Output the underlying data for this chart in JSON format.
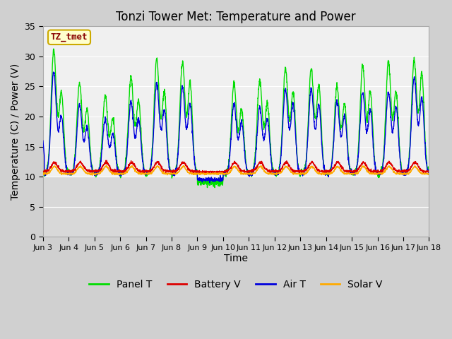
{
  "title": "Tonzi Tower Met: Temperature and Power",
  "xlabel": "Time",
  "ylabel": "Temperature (C) / Power (V)",
  "ylim": [
    0,
    35
  ],
  "yticks": [
    0,
    5,
    10,
    15,
    20,
    25,
    30,
    35
  ],
  "x_labels": [
    "Jun 3",
    "Jun 4",
    "Jun 5",
    "Jun 6",
    "Jun 7",
    "Jun 8",
    "Jun 9",
    "Jun 10",
    "Jun 11",
    "Jun 12",
    "Jun 13",
    "Jun 14",
    "Jun 15",
    "Jun 16",
    "Jun 17",
    "Jun 18"
  ],
  "annotation_text": "TZ_tmet",
  "annotation_color": "#880000",
  "annotation_bg": "#ffffcc",
  "annotation_border": "#ccaa00",
  "panel_t_color": "#00dd00",
  "battery_v_color": "#dd0000",
  "air_t_color": "#0000dd",
  "solar_v_color": "#ffaa00",
  "bg_upper": "#f0f0f0",
  "bg_lower": "#d8d8d8",
  "bg_outer": "#d0d0d0",
  "grid_color": "#e8e8e8",
  "title_fontsize": 12,
  "axis_fontsize": 10,
  "tick_fontsize": 9,
  "legend_fontsize": 10,
  "n_days": 15,
  "pts_per_day": 144
}
